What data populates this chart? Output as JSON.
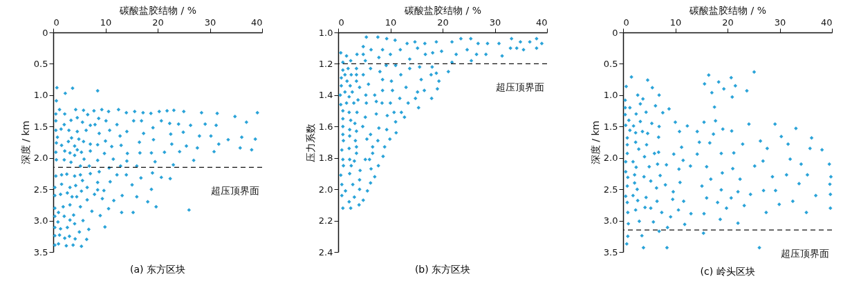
{
  "chart_data": [
    {
      "type": "scatter",
      "title": "(a) 东方区块",
      "xlabel": "碳酸盐胶结物 / %",
      "ylabel": "深度 / km",
      "color": "#2aa3d8",
      "marker": "diamond",
      "grid": false,
      "xlim": [
        0,
        40
      ],
      "xticks": [
        0,
        10,
        20,
        30,
        40
      ],
      "ylim": [
        3.5,
        0
      ],
      "yticks": [
        0,
        0.5,
        {
          "value": 1,
          "label": "1.0"
        },
        1.5,
        {
          "value": 2,
          "label": "2.0"
        },
        2.5,
        {
          "value": 3,
          "label": "3.0"
        },
        3.5
      ],
      "ref_lines": [
        {
          "axis": "y",
          "value": 2.15,
          "label": "超压顶界面"
        }
      ],
      "x": [
        0.7,
        2.3,
        3.7,
        8.5,
        0.6,
        1.2,
        4.3,
        5.8,
        7.8,
        9.3,
        10.6,
        12.5,
        14.0,
        15.6,
        17.2,
        18.7,
        20.3,
        21.8,
        23.1,
        25.0,
        28.4,
        31.4,
        39.1,
        34.8,
        37.0,
        0.5,
        2.2,
        3.4,
        4.6,
        5.6,
        6.6,
        8.7,
        10.1,
        15.4,
        16.9,
        20.7,
        22.3,
        24.0,
        26.3,
        29.1,
        31.2,
        0.5,
        2.1,
        7.1,
        8.0,
        12.2,
        0.5,
        1.5,
        3.0,
        4.6,
        6.3,
        8.8,
        10.8,
        14.1,
        17.3,
        19.1,
        22.5,
        24.9,
        28.0,
        30.2,
        33.5,
        36.1,
        38.7,
        12.8,
        0.8,
        3.5,
        4.9,
        0.6,
        1.6,
        2.9,
        5.8,
        7.1,
        8.5,
        11.2,
        13.0,
        16.5,
        19.2,
        22.7,
        25.5,
        27.6,
        30.8,
        31.7,
        35.8,
        38.0,
        10.0,
        4.1,
        4.6,
        0.5,
        2.2,
        3.2,
        5.4,
        7.1,
        9.8,
        14.2,
        16.6,
        18.8,
        21.3,
        24.2,
        0.6,
        2.1,
        4.1,
        5.9,
        8.5,
        11.5,
        14.1,
        19.5,
        26.9,
        23.0,
        12.9,
        16.0,
        3.4,
        5.2,
        6.9,
        8.8,
        10.7,
        0.5,
        1.6,
        2.6,
        4.1,
        5.2,
        7.1,
        12.2,
        14.0,
        16.8,
        19.0,
        20.7,
        22.4,
        10.9,
        8.5,
        0.3,
        1.6,
        3.2,
        4.3,
        5.6,
        6.5,
        8.5,
        15.1,
        18.8,
        5.4,
        9.7,
        0.3,
        1.4,
        2.7,
        3.6,
        4.5,
        6.5,
        7.9,
        9.4,
        11.6,
        13.2,
        16.0,
        18.1,
        0.3,
        1.9,
        3.2,
        5.2,
        7.4,
        10.6,
        13.1,
        15.3,
        19.7,
        26.0,
        1.0,
        0.3,
        0.9,
        2.1,
        3.2,
        3.9,
        5.7,
        9.0,
        9.9,
        0.3,
        1.4,
        2.7,
        4.1,
        5.0,
        6.8,
        0.3,
        1.2,
        2.2,
        3.1,
        4.2,
        6.4,
        1.0,
        2.5,
        3.8,
        5.4,
        0.3
      ],
      "values": [
        0.88,
        0.97,
        0.89,
        0.93,
        1.09,
        1.23,
        1.23,
        1.24,
        1.25,
        1.23,
        1.26,
        1.23,
        1.28,
        1.26,
        1.28,
        1.29,
        1.26,
        1.25,
        1.24,
        1.26,
        1.28,
        1.29,
        1.28,
        1.34,
        1.43,
        1.3,
        1.3,
        1.4,
        1.36,
        1.43,
        1.31,
        1.37,
        1.41,
        1.41,
        1.41,
        1.41,
        1.45,
        1.46,
        1.48,
        1.46,
        1.48,
        1.41,
        1.47,
        1.48,
        1.47,
        1.47,
        1.56,
        1.54,
        1.56,
        1.58,
        1.56,
        1.61,
        1.56,
        1.58,
        1.61,
        1.52,
        1.62,
        1.59,
        1.65,
        1.65,
        1.71,
        1.67,
        1.7,
        1.65,
        1.67,
        1.68,
        1.7,
        1.76,
        1.8,
        1.74,
        1.74,
        1.78,
        1.79,
        1.82,
        1.8,
        1.75,
        1.71,
        1.78,
        1.81,
        1.84,
        1.9,
        1.78,
        1.84,
        1.87,
        1.73,
        1.81,
        1.87,
        1.91,
        1.89,
        1.92,
        1.91,
        1.89,
        1.93,
        1.93,
        1.92,
        1.92,
        1.91,
        1.9,
        2.03,
        2.03,
        1.96,
        2.02,
        2.04,
        2.02,
        2.05,
        2.06,
        2.04,
        2.11,
        2.13,
        2.13,
        2.07,
        2.13,
        2.13,
        2.22,
        2.16,
        2.29,
        2.27,
        2.26,
        2.29,
        2.27,
        2.25,
        2.27,
        2.27,
        2.32,
        2.24,
        2.31,
        2.33,
        2.38,
        2.39,
        2.47,
        2.42,
        2.47,
        2.44,
        2.36,
        2.47,
        2.51,
        2.43,
        2.5,
        2.53,
        2.52,
        2.6,
        2.58,
        2.56,
        2.62,
        2.62,
        2.67,
        2.58,
        2.65,
        2.68,
        2.6,
        2.62,
        2.7,
        2.8,
        2.78,
        2.75,
        2.78,
        2.85,
        2.81,
        2.87,
        2.87,
        2.78,
        2.83,
        2.87,
        2.93,
        3.02,
        2.93,
        2.99,
        2.91,
        3.0,
        2.92,
        3.1,
        3.11,
        3.13,
        3.11,
        3.05,
        3.18,
        3.14,
        3.24,
        3.23,
        3.28,
        3.25,
        3.29,
        3.3,
        3.37,
        3.4,
        3.39,
        3.41,
        3.39
      ]
    },
    {
      "type": "scatter",
      "title": "(b) 东方区块",
      "xlabel": "碳酸盐胶结物 / %",
      "ylabel": "压力系数",
      "color": "#2aa3d8",
      "marker": "diamond",
      "grid": false,
      "xlim": [
        0,
        40
      ],
      "xticks": [
        0,
        10,
        20,
        30,
        40
      ],
      "ylim": [
        2.4,
        1.0
      ],
      "yticks": [
        {
          "value": 1,
          "label": "1.0"
        },
        1.2,
        1.4,
        1.6,
        1.8,
        {
          "value": 2,
          "label": "2.0"
        },
        2.2,
        2.4
      ],
      "ref_lines": [
        {
          "axis": "y",
          "value": 1.2,
          "label": "超压顶界面"
        }
      ],
      "x": [
        5.4,
        7.6,
        9.3,
        10.9,
        13.2,
        14.7,
        16.6,
        18.8,
        21.8,
        23.5,
        25.4,
        26.8,
        28.6,
        30.8,
        33.2,
        34.9,
        36.7,
        38.0,
        39.0,
        4.8,
        6.3,
        8.5,
        10.0,
        11.9,
        15.2,
        16.7,
        18.1,
        19.8,
        22.6,
        24.7,
        26.5,
        28.3,
        31.4,
        33.0,
        34.2,
        35.5,
        38.0,
        0.5,
        1.6,
        3.6,
        4.8,
        2.4,
        5.2,
        7.8,
        13.7,
        9.2,
        11.0,
        15.6,
        18.0,
        21.8,
        25.5,
        0.9,
        0.9,
        1.9,
        3.5,
        6.2,
        8.0,
        13.7,
        21.1,
        1.3,
        2.5,
        3.5,
        4.8,
        12.0,
        17.8,
        18.8,
        0.6,
        1.7,
        3.5,
        8.5,
        10.2,
        15.9,
        19.3,
        0.6,
        2.3,
        4.1,
        5.8,
        13.0,
        19.0,
        16.5,
        8.5,
        10.4,
        15.2,
        1.3,
        2.7,
        0.4,
        5.3,
        7.0,
        2.1,
        3.8,
        7.3,
        10.0,
        11.8,
        13.4,
        14.8,
        15.4,
        17.9,
        0.5,
        1.6,
        3.0,
        5.4,
        8.4,
        0.9,
        2.1,
        3.6,
        7.3,
        9.4,
        10.7,
        12.1,
        12.7,
        5.2,
        0.9,
        2.4,
        3.2,
        11.0,
        0.9,
        4.7,
        7.8,
        9.3,
        2.2,
        3.5,
        0.9,
        6.2,
        11.1,
        2.2,
        1.0,
        3.3,
        5.5,
        7.6,
        9.9,
        3.5,
        8.9,
        0.7,
        2.1,
        6.6,
        3.5,
        6.6,
        8.6,
        0.9,
        2.2,
        3.1,
        5.2,
        6.0,
        1.0,
        2.5,
        7.7,
        6.3,
        4.2,
        0.5,
        2.2,
        7.0,
        4.1,
        2.8,
        6.2,
        0.7,
        1.4,
        4.1,
        5.6,
        0.7,
        3.1,
        2.1,
        4.8,
        4.0,
        0.9,
        2.4
      ],
      "values": [
        1.03,
        1.03,
        1.04,
        1.05,
        1.07,
        1.06,
        1.07,
        1.06,
        1.06,
        1.04,
        1.04,
        1.07,
        1.07,
        1.07,
        1.04,
        1.06,
        1.06,
        1.04,
        1.07,
        1.09,
        1.11,
        1.11,
        1.14,
        1.11,
        1.1,
        1.14,
        1.13,
        1.12,
        1.14,
        1.11,
        1.14,
        1.14,
        1.15,
        1.1,
        1.1,
        1.11,
        1.1,
        1.13,
        1.15,
        1.14,
        1.14,
        1.18,
        1.18,
        1.16,
        1.17,
        1.21,
        1.21,
        1.22,
        1.22,
        1.19,
        1.18,
        1.19,
        1.24,
        1.23,
        1.23,
        1.23,
        1.25,
        1.23,
        1.25,
        1.27,
        1.27,
        1.27,
        1.27,
        1.27,
        1.27,
        1.26,
        1.29,
        1.31,
        1.31,
        1.3,
        1.31,
        1.3,
        1.31,
        1.34,
        1.34,
        1.35,
        1.33,
        1.35,
        1.36,
        1.37,
        1.37,
        1.37,
        1.38,
        1.38,
        1.38,
        1.4,
        1.4,
        1.4,
        1.41,
        1.43,
        1.44,
        1.45,
        1.42,
        1.45,
        1.42,
        1.48,
        1.42,
        1.46,
        1.45,
        1.45,
        1.45,
        1.45,
        1.5,
        1.51,
        1.51,
        1.52,
        1.53,
        1.51,
        1.51,
        1.54,
        1.54,
        1.55,
        1.56,
        1.58,
        1.57,
        1.6,
        1.6,
        1.61,
        1.62,
        1.62,
        1.63,
        1.65,
        1.65,
        1.64,
        1.66,
        1.69,
        1.69,
        1.68,
        1.69,
        1.68,
        1.73,
        1.73,
        1.75,
        1.74,
        1.73,
        1.77,
        1.77,
        1.79,
        1.81,
        1.81,
        1.82,
        1.81,
        1.81,
        1.85,
        1.85,
        1.85,
        1.87,
        1.88,
        1.91,
        1.9,
        1.92,
        1.94,
        1.97,
        1.96,
        1.97,
        2.01,
        2.0,
        2.01,
        2.04,
        2.05,
        2.08,
        2.07,
        2.1,
        2.12,
        2.12
      ]
    },
    {
      "type": "scatter",
      "title": "(c) 岭头区块",
      "xlabel": "碳酸盐胶结物 / %",
      "ylabel": "深度 / km",
      "color": "#2aa3d8",
      "marker": "diamond",
      "grid": false,
      "xlim": [
        0,
        40
      ],
      "xticks": [
        0,
        10,
        20,
        30,
        40
      ],
      "ylim": [
        3.5,
        0
      ],
      "yticks": [
        0,
        0.5,
        {
          "value": 1,
          "label": "1.0"
        },
        1.5,
        {
          "value": 2,
          "label": "2.0"
        },
        2.5,
        {
          "value": 3,
          "label": "3.0"
        },
        3.5
      ],
      "ref_lines": [
        {
          "axis": "y",
          "value": 3.15,
          "label": "超压顶界面"
        }
      ],
      "x": [
        1.6,
        0.6,
        4.7,
        5.6,
        2.8,
        3.8,
        6.9,
        3.3,
        0.4,
        0.4,
        1.3,
        6.2,
        8.8,
        7.6,
        4.4,
        2.5,
        0.4,
        1.1,
        3.3,
        5.5,
        2.0,
        0.5,
        1.3,
        2.4,
        3.7,
        4.7,
        6.9,
        6.8,
        0.8,
        2.4,
        4.5,
        3.0,
        0.8,
        0.8,
        4.1,
        6.0,
        6.8,
        1.9,
        0.5,
        2.5,
        5.0,
        6.6,
        8.3,
        0.5,
        0.9,
        2.2,
        4.0,
        7.1,
        5.3,
        0.8,
        2.2,
        2.7,
        6.4,
        8.1,
        0.5,
        1.9,
        4.4,
        2.8,
        6.5,
        0.8,
        0.9,
        2.4,
        4.2,
        5.3,
        7.4,
        3.1,
        5.8,
        1.0,
        6.9,
        0.9,
        3.6,
        0.7,
        3.9,
        8.4,
        9.1,
        8.5,
        10.0,
        10.8,
        12.3,
        11.2,
        9.7,
        11.5,
        10.7,
        10.9,
        9.6,
        9.5,
        11.6,
        10.6,
        13.0,
        11.8,
        12.9,
        14.2,
        14.6,
        14.2,
        15.1,
        15.5,
        15.4,
        15.5,
        15.6,
        16.4,
        17.0,
        17.5,
        18.3,
        17.7,
        17.3,
        16.6,
        16.0,
        16.8,
        16.0,
        18.1,
        18.6,
        19.3,
        19.1,
        18.8,
        19.0,
        18.8,
        19.8,
        20.7,
        20.9,
        20.8,
        21.2,
        21.0,
        20.7,
        21.5,
        22.4,
        22.9,
        22.0,
        22.0,
        23.7,
        23.2,
        24.1,
        24.4,
        25.1,
        25.2,
        26.1,
        26.3,
        26.8,
        26.9,
        27.4,
        27.6,
        28.6,
        29.1,
        29.2,
        29.9,
        30.3,
        31.3,
        31.6,
        32.0,
        32.5,
        33.1,
        33.7,
        34.1,
        35.1,
        35.3,
        35.8,
        36.1,
        36.9,
        38.1,
        39.5,
        39.8,
        39.6,
        39.7,
        39.7
      ],
      "values": [
        0.71,
        0.86,
        0.76,
        0.88,
        1.0,
        1.06,
        1.0,
        1.14,
        1.08,
        1.2,
        1.2,
        1.17,
        1.22,
        1.28,
        1.27,
        1.3,
        1.31,
        1.4,
        1.42,
        1.45,
        1.49,
        1.48,
        1.56,
        1.6,
        1.58,
        1.61,
        1.5,
        1.67,
        1.68,
        1.75,
        1.79,
        1.86,
        1.79,
        1.93,
        1.98,
        1.93,
        1.91,
        2.06,
        2.06,
        2.15,
        2.14,
        2.1,
        2.11,
        2.22,
        2.31,
        2.27,
        2.3,
        2.28,
        2.37,
        2.45,
        2.4,
        2.5,
        2.48,
        2.43,
        2.61,
        2.6,
        2.63,
        2.68,
        2.69,
        2.71,
        2.87,
        2.83,
        2.79,
        2.8,
        2.87,
        3.01,
        3.02,
        3.05,
        3.17,
        3.25,
        3.24,
        3.37,
        3.43,
        3.43,
        2.94,
        3.11,
        1.43,
        1.58,
        1.49,
        1.83,
        1.94,
        2.04,
        2.18,
        2.39,
        2.54,
        2.66,
        2.69,
        2.83,
        2.89,
        3.06,
        2.13,
        1.58,
        1.75,
        1.94,
        2.45,
        2.89,
        3.2,
        1.43,
        0.82,
        0.68,
        0.96,
        1.19,
        0.79,
        1.41,
        1.62,
        1.76,
        2.14,
        2.34,
        2.64,
        2.71,
        2.98,
        0.9,
        1.54,
        1.93,
        2.24,
        2.51,
        2.8,
        0.72,
        1.03,
        1.57,
        1.92,
        2.17,
        2.64,
        0.85,
        2.34,
        1.78,
        2.54,
        3.04,
        0.93,
        2.76,
        1.46,
        2.58,
        0.63,
        2.13,
        3.43,
        1.73,
        2.05,
        2.52,
        2.87,
        1.85,
        2.3,
        1.46,
        2.52,
        2.74,
        1.66,
        2.27,
        1.78,
        2.02,
        2.69,
        1.53,
        2.41,
        2.1,
        2.87,
        2.27,
        1.85,
        1.68,
        2.6,
        1.87,
        2.1,
        2.3,
        2.42,
        2.58,
        2.8
      ]
    }
  ]
}
